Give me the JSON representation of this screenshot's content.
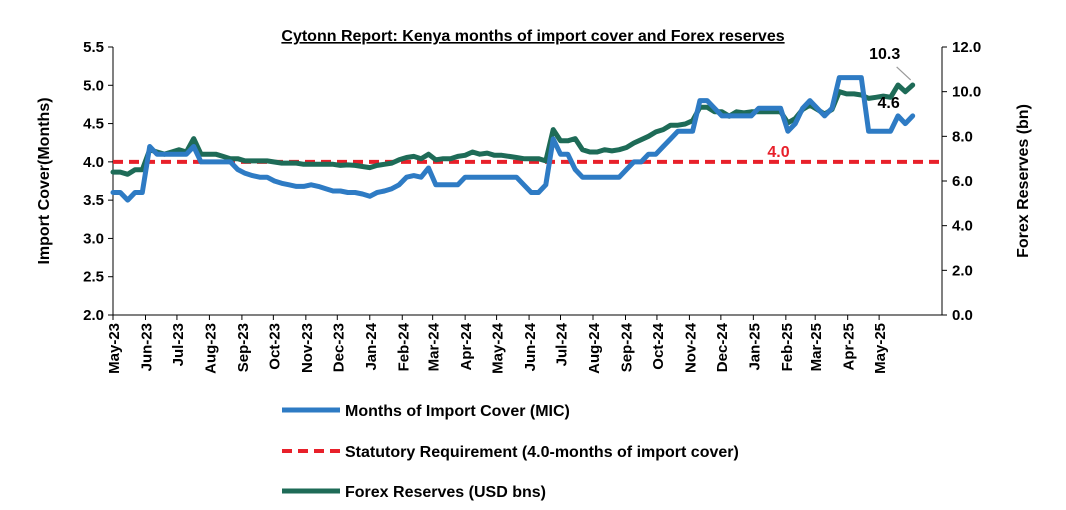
{
  "chart_data": {
    "type": "line",
    "title": "Cytonn Report: Kenya months of import cover and Forex reserves",
    "ylabel_left": "Import Cover(Months)",
    "ylabel_right": "Forex Reserves (bn)",
    "ylim_left": [
      2.0,
      5.5
    ],
    "ylim_right": [
      0.0,
      12.0
    ],
    "yticks_left": [
      "2.0",
      "2.5",
      "3.0",
      "3.5",
      "4.0",
      "4.5",
      "5.0",
      "5.5"
    ],
    "yticks_right": [
      "0.0",
      "2.0",
      "4.0",
      "6.0",
      "8.0",
      "10.0",
      "12.0"
    ],
    "x_start": "2023-05-01",
    "x_end": "2025-06-30",
    "xtick_labels": [
      "May-23",
      "Jun-23",
      "Jul-23",
      "Aug-23",
      "Sep-23",
      "Oct-23",
      "Nov-23",
      "Dec-23",
      "Jan-24",
      "Feb-24",
      "Mar-24",
      "Apr-24",
      "May-24",
      "Jun-24",
      "Jul-24",
      "Aug-24",
      "Sep-24",
      "Oct-24",
      "Nov-24",
      "Dec-24",
      "Jan-25",
      "Feb-25",
      "Mar-25",
      "Apr-25",
      "May-25"
    ],
    "xtick_dates": [
      "2023-05-01",
      "2023-06-01",
      "2023-07-01",
      "2023-08-01",
      "2023-09-01",
      "2023-10-01",
      "2023-11-01",
      "2023-12-01",
      "2024-01-01",
      "2024-02-01",
      "2024-03-01",
      "2024-04-01",
      "2024-05-01",
      "2024-06-01",
      "2024-07-01",
      "2024-08-01",
      "2024-09-01",
      "2024-10-01",
      "2024-11-01",
      "2024-12-01",
      "2025-01-01",
      "2025-02-01",
      "2025-03-01",
      "2025-04-01",
      "2025-05-01"
    ],
    "series": [
      {
        "name": "Months of Import Cover (MIC)",
        "axis": "left",
        "color": "#2E7BC4",
        "style": "solid",
        "x": [
          "2023-05-01",
          "2023-05-08",
          "2023-05-15",
          "2023-05-22",
          "2023-05-29",
          "2023-06-05",
          "2023-06-12",
          "2023-06-19",
          "2023-06-26",
          "2023-07-03",
          "2023-07-10",
          "2023-07-17",
          "2023-07-24",
          "2023-07-31",
          "2023-08-07",
          "2023-08-14",
          "2023-08-21",
          "2023-08-28",
          "2023-09-04",
          "2023-09-11",
          "2023-09-18",
          "2023-09-25",
          "2023-10-02",
          "2023-10-09",
          "2023-10-16",
          "2023-10-23",
          "2023-10-30",
          "2023-11-06",
          "2023-11-13",
          "2023-11-20",
          "2023-11-27",
          "2023-12-04",
          "2023-12-11",
          "2023-12-18",
          "2023-12-25",
          "2024-01-01",
          "2024-01-08",
          "2024-01-15",
          "2024-01-22",
          "2024-01-29",
          "2024-02-05",
          "2024-02-12",
          "2024-02-19",
          "2024-02-26",
          "2024-03-04",
          "2024-03-11",
          "2024-03-18",
          "2024-03-25",
          "2024-04-01",
          "2024-04-08",
          "2024-04-15",
          "2024-04-22",
          "2024-04-29",
          "2024-05-06",
          "2024-05-13",
          "2024-05-20",
          "2024-05-27",
          "2024-06-03",
          "2024-06-10",
          "2024-06-17",
          "2024-06-24",
          "2024-07-01",
          "2024-07-08",
          "2024-07-15",
          "2024-07-22",
          "2024-07-29",
          "2024-08-05",
          "2024-08-12",
          "2024-08-19",
          "2024-08-26",
          "2024-09-02",
          "2024-09-09",
          "2024-09-16",
          "2024-09-23",
          "2024-09-30",
          "2024-10-07",
          "2024-10-14",
          "2024-10-21",
          "2024-10-28",
          "2024-11-04",
          "2024-11-11",
          "2024-11-18",
          "2024-11-25",
          "2024-12-02",
          "2024-12-09",
          "2024-12-16",
          "2024-12-23",
          "2024-12-30",
          "2025-01-06",
          "2025-01-13",
          "2025-01-20",
          "2025-01-27",
          "2025-02-03",
          "2025-02-10",
          "2025-02-17",
          "2025-02-24",
          "2025-03-03",
          "2025-03-10",
          "2025-03-17",
          "2025-03-24",
          "2025-03-31",
          "2025-04-07",
          "2025-04-14",
          "2025-04-21",
          "2025-04-28",
          "2025-05-05",
          "2025-05-12",
          "2025-05-19",
          "2025-05-26",
          "2025-06-02"
        ],
        "values": [
          3.6,
          3.6,
          3.5,
          3.6,
          3.6,
          4.2,
          4.1,
          4.1,
          4.1,
          4.1,
          4.1,
          4.2,
          4.0,
          4.0,
          4.0,
          4.0,
          4.0,
          3.9,
          3.85,
          3.82,
          3.8,
          3.8,
          3.75,
          3.72,
          3.7,
          3.68,
          3.68,
          3.7,
          3.68,
          3.65,
          3.62,
          3.62,
          3.6,
          3.6,
          3.58,
          3.55,
          3.6,
          3.62,
          3.65,
          3.7,
          3.8,
          3.82,
          3.8,
          3.92,
          3.7,
          3.7,
          3.7,
          3.7,
          3.8,
          3.8,
          3.8,
          3.8,
          3.8,
          3.8,
          3.8,
          3.8,
          3.7,
          3.6,
          3.6,
          3.7,
          4.3,
          4.1,
          4.1,
          3.9,
          3.8,
          3.8,
          3.8,
          3.8,
          3.8,
          3.8,
          3.9,
          4.0,
          4.0,
          4.1,
          4.1,
          4.2,
          4.3,
          4.4,
          4.4,
          4.4,
          4.8,
          4.8,
          4.7,
          4.6,
          4.6,
          4.6,
          4.6,
          4.6,
          4.7,
          4.7,
          4.7,
          4.7,
          4.4,
          4.5,
          4.7,
          4.8,
          4.7,
          4.6,
          4.7,
          5.1,
          5.1,
          5.1,
          5.1,
          4.4,
          4.4,
          4.4,
          4.4,
          4.6,
          4.5,
          4.6
        ]
      },
      {
        "name": "Statutory Requirement (4.0-months of import cover)",
        "axis": "left",
        "color": "#E8202A",
        "style": "dashed",
        "x": [
          "2023-05-01",
          "2025-06-30"
        ],
        "values": [
          4.0,
          4.0
        ]
      },
      {
        "name": "Forex Reserves (USD bns)",
        "axis": "right",
        "color": "#1E6B57",
        "style": "solid",
        "x": [
          "2023-05-01",
          "2023-05-08",
          "2023-05-15",
          "2023-05-22",
          "2023-05-29",
          "2023-06-05",
          "2023-06-12",
          "2023-06-19",
          "2023-06-26",
          "2023-07-03",
          "2023-07-10",
          "2023-07-17",
          "2023-07-24",
          "2023-07-31",
          "2023-08-07",
          "2023-08-14",
          "2023-08-21",
          "2023-08-28",
          "2023-09-04",
          "2023-09-11",
          "2023-09-18",
          "2023-09-25",
          "2023-10-02",
          "2023-10-09",
          "2023-10-16",
          "2023-10-23",
          "2023-10-30",
          "2023-11-06",
          "2023-11-13",
          "2023-11-20",
          "2023-11-27",
          "2023-12-04",
          "2023-12-11",
          "2023-12-18",
          "2023-12-25",
          "2024-01-01",
          "2024-01-08",
          "2024-01-15",
          "2024-01-22",
          "2024-01-29",
          "2024-02-05",
          "2024-02-12",
          "2024-02-19",
          "2024-02-26",
          "2024-03-04",
          "2024-03-11",
          "2024-03-18",
          "2024-03-25",
          "2024-04-01",
          "2024-04-08",
          "2024-04-15",
          "2024-04-22",
          "2024-04-29",
          "2024-05-06",
          "2024-05-13",
          "2024-05-20",
          "2024-05-27",
          "2024-06-03",
          "2024-06-10",
          "2024-06-17",
          "2024-06-24",
          "2024-07-01",
          "2024-07-08",
          "2024-07-15",
          "2024-07-22",
          "2024-07-29",
          "2024-08-05",
          "2024-08-12",
          "2024-08-19",
          "2024-08-26",
          "2024-09-02",
          "2024-09-09",
          "2024-09-16",
          "2024-09-23",
          "2024-09-30",
          "2024-10-07",
          "2024-10-14",
          "2024-10-21",
          "2024-10-28",
          "2024-11-04",
          "2024-11-11",
          "2024-11-18",
          "2024-11-25",
          "2024-12-02",
          "2024-12-09",
          "2024-12-16",
          "2024-12-23",
          "2024-12-30",
          "2025-01-06",
          "2025-01-13",
          "2025-01-20",
          "2025-01-27",
          "2025-02-03",
          "2025-02-10",
          "2025-02-17",
          "2025-02-24",
          "2025-03-03",
          "2025-03-10",
          "2025-03-17",
          "2025-03-24",
          "2025-03-31",
          "2025-04-07",
          "2025-04-14",
          "2025-04-21",
          "2025-04-28",
          "2025-05-05",
          "2025-05-12",
          "2025-05-19",
          "2025-05-26",
          "2025-06-02"
        ],
        "values": [
          6.4,
          6.4,
          6.3,
          6.5,
          6.5,
          7.4,
          7.3,
          7.2,
          7.3,
          7.4,
          7.3,
          7.9,
          7.2,
          7.2,
          7.2,
          7.1,
          7.0,
          7.0,
          6.9,
          6.9,
          6.9,
          6.9,
          6.85,
          6.8,
          6.8,
          6.8,
          6.75,
          6.75,
          6.75,
          6.75,
          6.75,
          6.7,
          6.72,
          6.7,
          6.65,
          6.6,
          6.7,
          6.75,
          6.8,
          6.95,
          7.05,
          7.1,
          7.0,
          7.2,
          6.95,
          7.0,
          7.0,
          7.1,
          7.15,
          7.3,
          7.2,
          7.25,
          7.15,
          7.15,
          7.1,
          7.05,
          7.0,
          7.0,
          7.0,
          6.9,
          8.3,
          7.8,
          7.8,
          7.9,
          7.4,
          7.3,
          7.3,
          7.4,
          7.35,
          7.4,
          7.5,
          7.7,
          7.85,
          8.0,
          8.2,
          8.3,
          8.5,
          8.5,
          8.55,
          8.7,
          9.3,
          9.3,
          9.1,
          9.1,
          8.9,
          9.1,
          9.05,
          9.1,
          9.1,
          9.1,
          9.1,
          9.1,
          8.6,
          8.8,
          9.2,
          9.4,
          9.2,
          9.0,
          9.2,
          10.0,
          9.9,
          9.9,
          9.85,
          9.7,
          9.75,
          9.8,
          9.75,
          10.3,
          10.0,
          10.3
        ]
      }
    ],
    "annotations": [
      {
        "text": "10.3",
        "axis": "right",
        "x": "2025-06-02",
        "y": 10.3,
        "color": "#000000"
      },
      {
        "text": "4.6",
        "axis": "left",
        "x": "2025-06-02",
        "y": 4.6,
        "color": "#000000"
      },
      {
        "text": "4.0",
        "axis": "left",
        "x": "2025-01-25",
        "y": 4.0,
        "color": "#E8202A"
      }
    ],
    "grid": false,
    "legend_position": "bottom"
  }
}
